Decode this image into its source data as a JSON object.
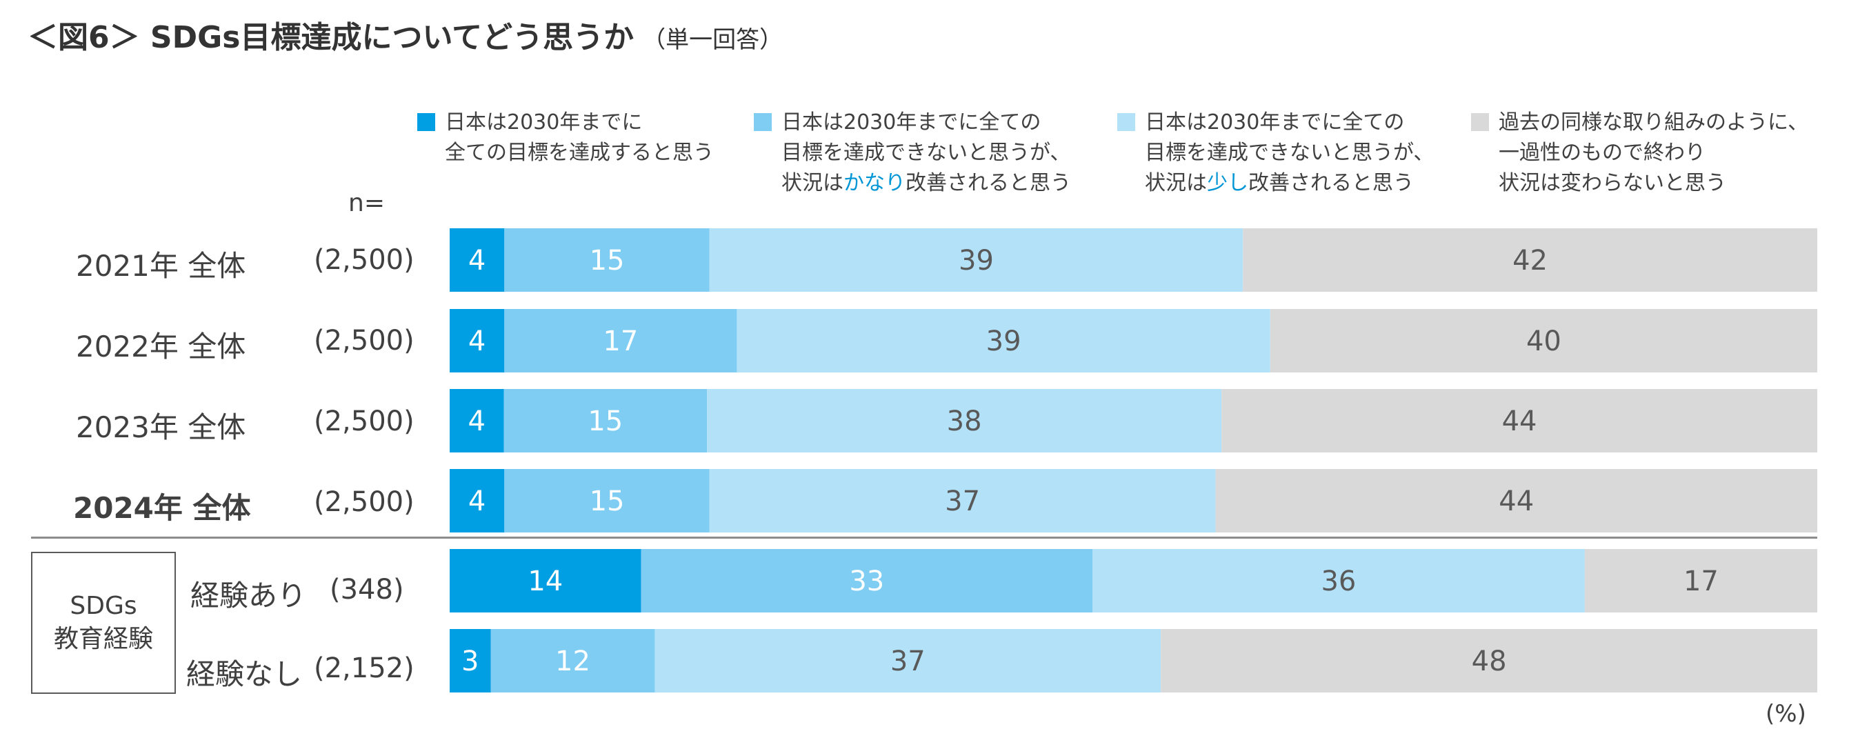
{
  "title": {
    "main": "＜図6＞ SDGs目標達成についてどう思うか",
    "sub": "（単一回答）"
  },
  "legend": [
    {
      "text": "日本は2030年までに\n全ての目標を達成すると思う",
      "color": "#009ee3"
    },
    {
      "pre": "日本は2030年までに全ての\n目標を達成できないと思うが、\n状況は",
      "highlight": "かなり",
      "post": "改善されると思う",
      "color": "#7fcdf3"
    },
    {
      "pre": "日本は2030年までに全ての\n目標を達成できないと思うが、\n状況は",
      "highlight": "少し",
      "post": "改善されると思う",
      "color": "#b3e1f7"
    },
    {
      "text": "過去の同様な取り組みのように、\n一過性のもので終わり\n状況は変わらないと思う",
      "color": "#d9d9d9"
    }
  ],
  "n_label": "n=",
  "group_label": "SDGs\n教育経験",
  "unit": "(%)",
  "chart_data": {
    "type": "bar",
    "orientation": "horizontal",
    "stacked": true,
    "normalized": true,
    "categories": [
      "2021年 全体",
      "2022年 全体",
      "2023年 全体",
      "2024年 全体",
      "経験あり",
      "経験なし"
    ],
    "n": [
      "(2,500)",
      "(2,500)",
      "(2,500)",
      "(2,500)",
      "(348)",
      "(2,152)"
    ],
    "series": [
      {
        "color": "#009ee3",
        "values": [
          4,
          4,
          4,
          4,
          14,
          3
        ]
      },
      {
        "color": "#7fcdf3",
        "values": [
          15,
          17,
          15,
          15,
          33,
          12
        ]
      },
      {
        "color": "#b3e1f7",
        "values": [
          39,
          39,
          38,
          37,
          36,
          37
        ]
      },
      {
        "color": "#d9d9d9",
        "values": [
          42,
          40,
          44,
          44,
          17,
          48
        ]
      }
    ],
    "label_colors": [
      "#ffffff",
      "#ffffff",
      "#595959",
      "#595959"
    ]
  }
}
